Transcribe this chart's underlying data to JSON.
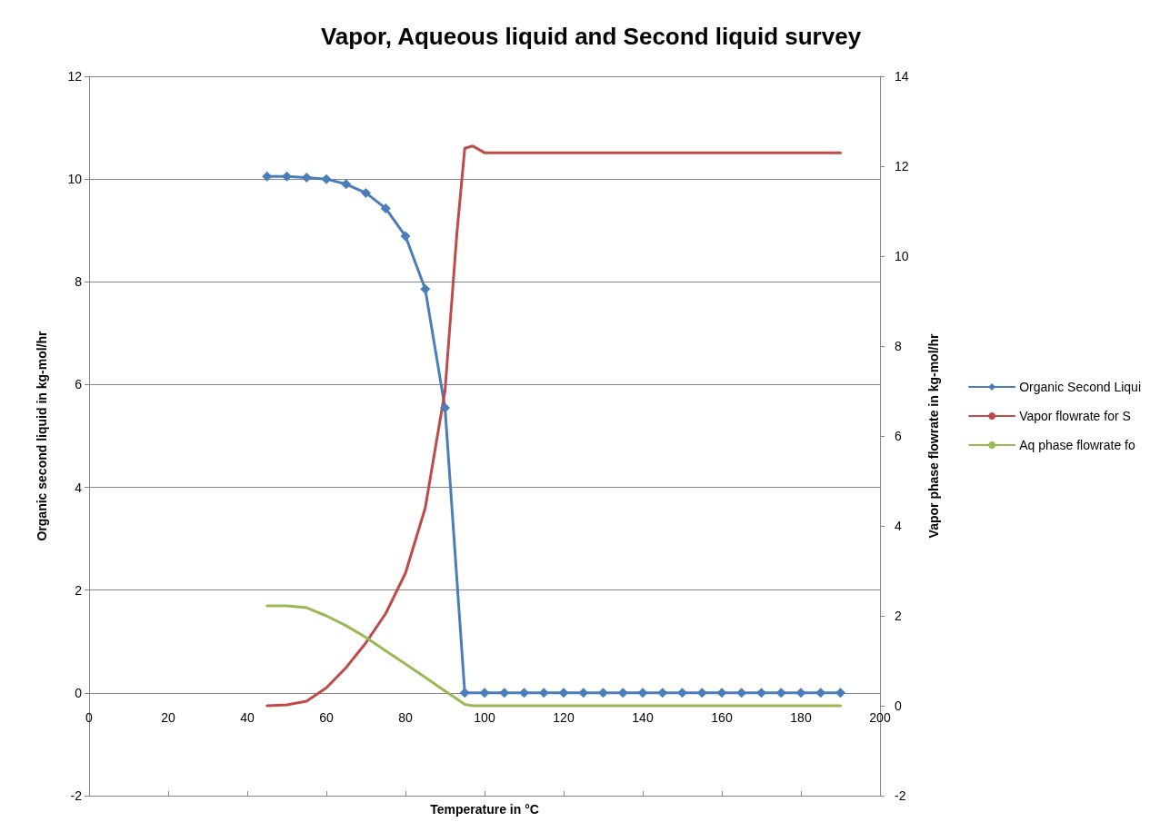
{
  "chart_data": {
    "type": "line",
    "title": "Vapor, Aqueous liquid and Second liquid survey",
    "xlabel": "Temperature in °C",
    "ylabel": "Organic second liquid in kg-mol/hr",
    "y2label": "Vapor phase flowrate in kg-mol/hr",
    "xlim": [
      0,
      200
    ],
    "xticks": [
      0,
      20,
      40,
      60,
      80,
      100,
      120,
      140,
      160,
      180,
      200
    ],
    "ylim": [
      -2,
      12
    ],
    "yticks": [
      -2,
      0,
      2,
      4,
      6,
      8,
      10,
      12
    ],
    "y2lim": [
      -2,
      14
    ],
    "y2ticks": [
      -2,
      0,
      2,
      4,
      6,
      8,
      10,
      12,
      14
    ],
    "grid": "y",
    "legend": "right",
    "line_style": "solid",
    "series": [
      {
        "name": "Organic Second Liqui",
        "color": "#4a7ebb",
        "marker": "diamond",
        "x": [
          45,
          50,
          55,
          60,
          65,
          70,
          75,
          80,
          85,
          90,
          95,
          100,
          105,
          110,
          115,
          120,
          125,
          130,
          135,
          140,
          145,
          150,
          155,
          160,
          165,
          170,
          175,
          180,
          185,
          190
        ],
        "values": [
          10.05,
          10.05,
          10.03,
          10.0,
          9.9,
          9.73,
          9.43,
          8.89,
          7.86,
          5.55,
          0,
          0,
          0,
          0,
          0,
          0,
          0,
          0,
          0,
          0,
          0,
          0,
          0,
          0,
          0,
          0,
          0,
          0,
          0,
          0
        ]
      },
      {
        "name": "Vapor flowrate for S",
        "color": "#be4b48",
        "marker": "none",
        "axis": "y2",
        "x": [
          45,
          50,
          55,
          60,
          65,
          70,
          75,
          80,
          85,
          90,
          93,
          95,
          97,
          100,
          120,
          140,
          160,
          190
        ],
        "values": [
          0,
          0.02,
          0.1,
          0.4,
          0.85,
          1.4,
          2.05,
          2.95,
          4.4,
          7.0,
          10.5,
          12.4,
          12.45,
          12.3,
          12.3,
          12.3,
          12.3,
          12.3
        ]
      },
      {
        "name": "Aq phase flowrate fo",
        "color": "#98b954",
        "marker": "none",
        "axis": "y2",
        "x": [
          45,
          50,
          55,
          60,
          65,
          70,
          75,
          80,
          85,
          90,
          95,
          97,
          100,
          120,
          140,
          160,
          190
        ],
        "values": [
          2.22,
          2.22,
          2.18,
          2.0,
          1.78,
          1.52,
          1.22,
          0.93,
          0.63,
          0.33,
          0.03,
          0,
          0,
          0,
          0,
          0,
          0
        ]
      }
    ]
  }
}
